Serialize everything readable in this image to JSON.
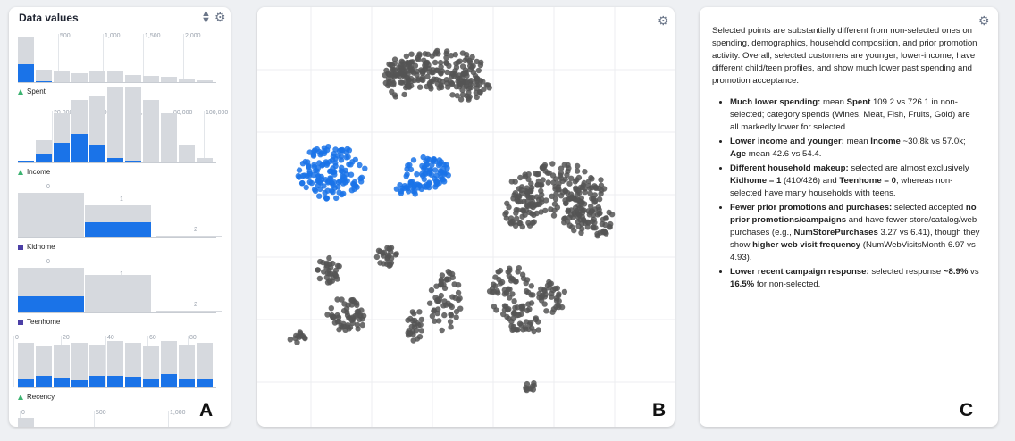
{
  "panelA": {
    "title": "Data values",
    "letter": "A",
    "sort_icon": "sort-arrows-icon",
    "settings_icon": "gear-icon",
    "sections": [
      {
        "field": "Spent",
        "type_icon": "triangle",
        "ticks": [
          "500",
          "1,000",
          "1,500",
          "2,000"
        ]
      },
      {
        "field": "Income",
        "type_icon": "triangle",
        "ticks": [
          "20,000",
          "40,000",
          "60,000",
          "80,000",
          "100,000"
        ]
      },
      {
        "field": "Kidhome",
        "type_icon": "square",
        "ticks": [
          "0",
          "1",
          "2"
        ]
      },
      {
        "field": "Teenhome",
        "type_icon": "square",
        "ticks": [
          "0",
          "1",
          "2"
        ]
      },
      {
        "field": "Recency",
        "type_icon": "triangle",
        "ticks": [
          "0",
          "20",
          "40",
          "60",
          "80"
        ]
      },
      {
        "field": "",
        "type_icon": "none",
        "ticks": [
          "0",
          "500",
          "1,000"
        ]
      }
    ]
  },
  "panelB": {
    "letter": "B",
    "settings_icon": "gear-icon",
    "colors": {
      "selected": "#1a73e8",
      "unselected": "#555555"
    }
  },
  "panelC": {
    "letter": "C",
    "settings_icon": "gear-icon",
    "intro": "Selected points are substantially different from non-selected ones on spending, demographics, household composition, and prior promotion activity. Overall, selected customers are younger, lower-income, have different child/teen profiles, and show much lower past spending and promotion acceptance.",
    "bullets": [
      {
        "parts": [
          {
            "b": "Much lower spending:"
          },
          {
            "t": " mean "
          },
          {
            "b": "Spent"
          },
          {
            "t": " 109.2 vs 726.1 in non-selected; category spends (Wines, Meat, Fish, Fruits, Gold) are all markedly lower for selected."
          }
        ]
      },
      {
        "parts": [
          {
            "b": "Lower income and younger:"
          },
          {
            "t": " mean "
          },
          {
            "b": "Income"
          },
          {
            "t": " ~30.8k vs 57.0k; "
          },
          {
            "b": "Age"
          },
          {
            "t": " mean 42.6 vs 54.4."
          }
        ]
      },
      {
        "parts": [
          {
            "b": "Different household makeup:"
          },
          {
            "t": " selected are almost exclusively "
          },
          {
            "b": "Kidhome = 1"
          },
          {
            "t": " (410/426) and "
          },
          {
            "b": "Teenhome = 0"
          },
          {
            "t": ", whereas non-selected have many households with teens."
          }
        ]
      },
      {
        "parts": [
          {
            "b": "Fewer prior promotions and purchases:"
          },
          {
            "t": " selected accepted "
          },
          {
            "b": "no prior promotions/campaigns"
          },
          {
            "t": " and have fewer store/catalog/web purchases (e.g., "
          },
          {
            "b": "NumStorePurchases"
          },
          {
            "t": " 3.27 vs 6.41), though they show "
          },
          {
            "b": "higher web visit frequency"
          },
          {
            "t": " (NumWebVisitsMonth 6.97 vs 4.93)."
          }
        ]
      },
      {
        "parts": [
          {
            "b": "Lower recent campaign response:"
          },
          {
            "t": " selected response "
          },
          {
            "b": "~8.9%"
          },
          {
            "t": " vs "
          },
          {
            "b": "16.5%"
          },
          {
            "t": " for non-selected."
          }
        ]
      }
    ]
  }
}
